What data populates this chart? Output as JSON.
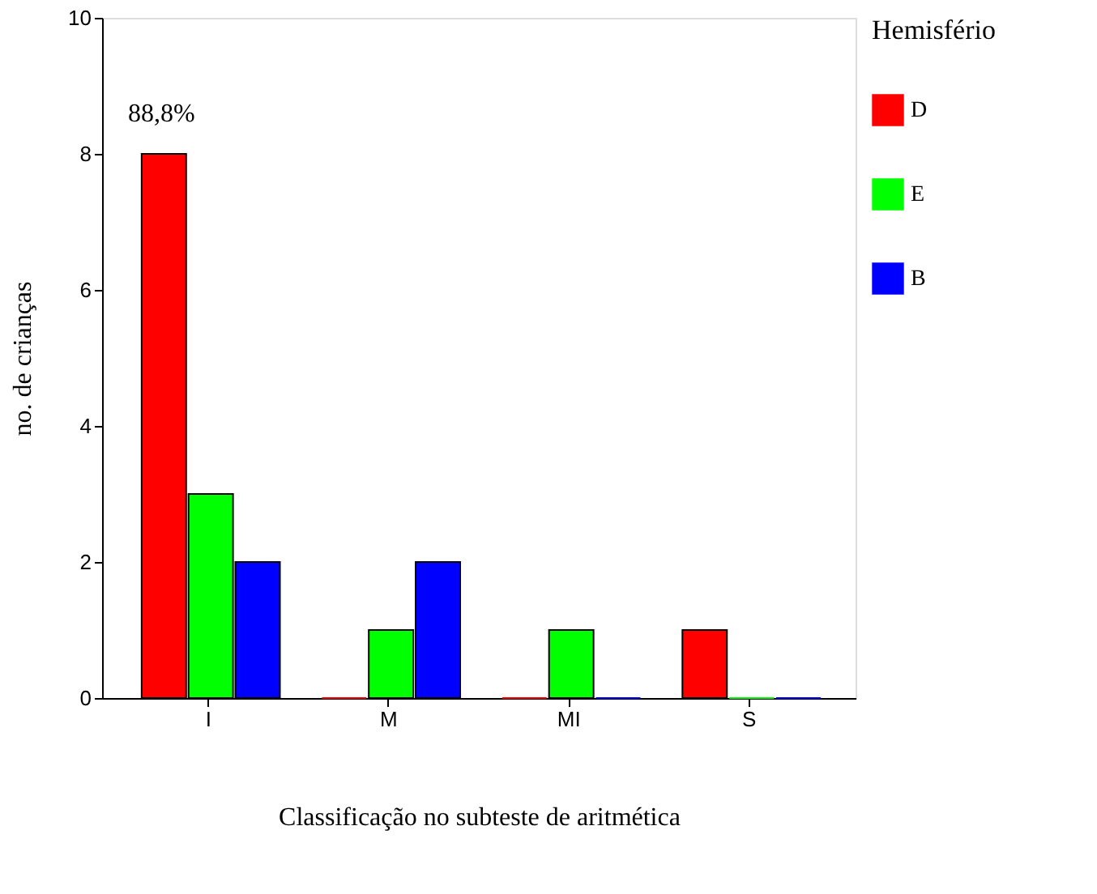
{
  "chart_data": {
    "type": "bar",
    "xlabel": "Classificação no subteste de aritmética",
    "ylabel": "no. de crianças",
    "legend_title": "Hemisfério",
    "categories": [
      "I",
      "M",
      "MI",
      "S"
    ],
    "series": [
      {
        "name": "D",
        "color": "#ff0000",
        "values": [
          8,
          0,
          0,
          1
        ]
      },
      {
        "name": "E",
        "color": "#00ff00",
        "values": [
          3,
          1,
          1,
          0
        ]
      },
      {
        "name": "B",
        "color": "#0000ff",
        "values": [
          2,
          2,
          0,
          0
        ]
      }
    ],
    "ylim": [
      0,
      10
    ],
    "yticks": [
      0,
      2,
      4,
      6,
      8,
      10
    ],
    "grid": false,
    "legend": "right",
    "annotations": [
      "88,8%"
    ]
  }
}
